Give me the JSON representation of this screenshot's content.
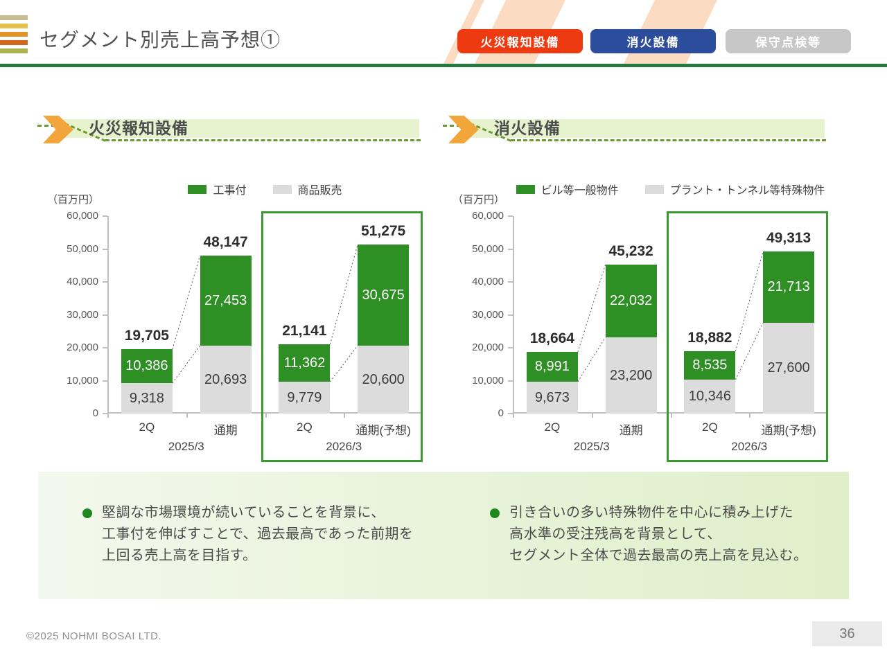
{
  "header": {
    "title": "セグメント別売上高予想①",
    "logo_bar_colors": [
      "#c6bd93",
      "#e4c24d",
      "#e39428",
      "#d2661e",
      "#a9b54c"
    ],
    "nav_buttons": [
      {
        "label": "火災報知設備",
        "color": "#ee3a10"
      },
      {
        "label": "消火設備",
        "color": "#2b4d9b"
      },
      {
        "label": "保守点検等",
        "color": "#c7c7c7"
      }
    ],
    "rule_color": "#26793c",
    "stripe_color": "#fbdcc2"
  },
  "chart_data": [
    {
      "type": "bar",
      "stacked": true,
      "section_title": "火災報知設備",
      "unit_label": "（百万円）",
      "categories": [
        "2Q",
        "通期",
        "2Q",
        "通期(予想)"
      ],
      "group_labels": [
        "2025/3",
        "2026/3"
      ],
      "series": [
        {
          "name": "工事付",
          "color": "#2e8f25",
          "position": "top",
          "values": [
            10386,
            27453,
            11362,
            30675
          ]
        },
        {
          "name": "商品販売",
          "color": "#dcdcdc",
          "position": "bottom",
          "values": [
            9318,
            20693,
            9779,
            20600
          ]
        }
      ],
      "totals": [
        19705,
        48147,
        21141,
        51275
      ],
      "ylim": [
        0,
        60000
      ],
      "ytick_step": 10000,
      "grid": false,
      "legend_position": "top",
      "highlight_box": {
        "group": "2026/3",
        "categories": [
          2,
          3
        ],
        "border_color": "#3a9a30"
      }
    },
    {
      "type": "bar",
      "stacked": true,
      "section_title": "消火設備",
      "unit_label": "（百万円）",
      "categories": [
        "2Q",
        "通期",
        "2Q",
        "通期(予想)"
      ],
      "group_labels": [
        "2025/3",
        "2026/3"
      ],
      "series": [
        {
          "name": "ビル等一般物件",
          "color": "#2e8f25",
          "position": "top",
          "values": [
            8991,
            22032,
            8535,
            21713
          ]
        },
        {
          "name": "プラント・トンネル等特殊物件",
          "color": "#dcdcdc",
          "position": "bottom",
          "values": [
            9673,
            23200,
            10346,
            27600
          ]
        }
      ],
      "totals": [
        18664,
        45232,
        18882,
        49313
      ],
      "ylim": [
        0,
        60000
      ],
      "ytick_step": 10000,
      "grid": false,
      "legend_position": "top",
      "highlight_box": {
        "group": "2026/3",
        "categories": [
          2,
          3
        ],
        "border_color": "#3a9a30"
      }
    }
  ],
  "comments": [
    {
      "bullet_color": "#1e8a1e",
      "lines": [
        "堅調な市場環境が続いていることを背景に、",
        "工事付を伸ばすことで、過去最高であった前期を",
        "上回る売上高を目指す。"
      ]
    },
    {
      "bullet_color": "#1e8a1e",
      "lines": [
        "引き合いの多い特殊物件を中心に積み上げた",
        "高水準の受注残高を背景として、",
        "セグメント全体で過去最高の売上高を見込む。"
      ]
    }
  ],
  "footer": {
    "copyright": "©2025 NOHMI BOSAI LTD.",
    "page_number": "36"
  }
}
